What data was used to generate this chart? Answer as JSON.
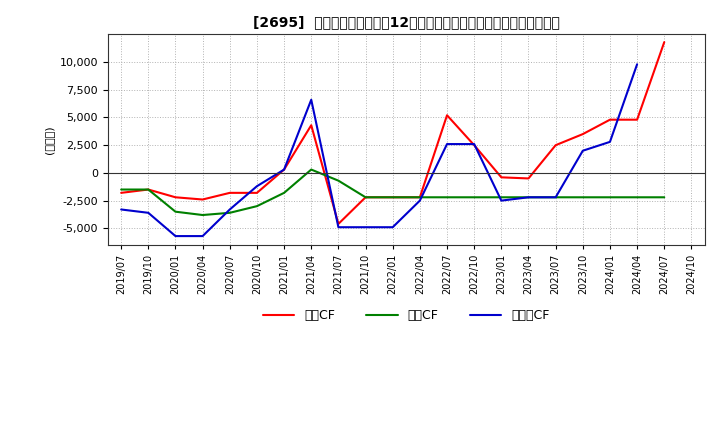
{
  "title": "[2695]  キャッシュフローの12か月移動合計の対前年同期増減額の推移",
  "ylabel": "(百万円)",
  "ylim": [
    -6500,
    12500
  ],
  "yticks": [
    -5000,
    -2500,
    0,
    2500,
    5000,
    7500,
    10000
  ],
  "legend_labels": [
    "営業CF",
    "投資CF",
    "フリーCF"
  ],
  "line_colors": [
    "#ff0000",
    "#008000",
    "#0000cd"
  ],
  "background_color": "#ffffff",
  "grid_color": "#aaaaaa",
  "dates": [
    "2019/07",
    "2019/10",
    "2020/01",
    "2020/04",
    "2020/07",
    "2020/10",
    "2021/01",
    "2021/04",
    "2021/07",
    "2021/10",
    "2022/01",
    "2022/04",
    "2022/07",
    "2022/10",
    "2023/01",
    "2023/04",
    "2023/07",
    "2023/10",
    "2024/01",
    "2024/04",
    "2024/07",
    "2024/10"
  ],
  "operating_cf": [
    -1800,
    -1500,
    -2200,
    -2400,
    -1800,
    -1800,
    300,
    4300,
    -4600,
    -2200,
    -2200,
    -2200,
    5200,
    2500,
    -400,
    -500,
    2500,
    3500,
    4800,
    4800,
    11800,
    null
  ],
  "investing_cf": [
    -1500,
    -1500,
    -3500,
    -3800,
    -3600,
    -3000,
    -1800,
    300,
    -700,
    -2200,
    -2200,
    -2200,
    -2200,
    -2200,
    -2200,
    -2200,
    -2200,
    -2200,
    -2200,
    -2200,
    -2200,
    null
  ],
  "free_cf": [
    -3300,
    -3600,
    -5700,
    -5700,
    -3300,
    -1200,
    300,
    6600,
    -4900,
    -4900,
    -4900,
    -2500,
    2600,
    2600,
    -2500,
    -2200,
    -2200,
    2000,
    2800,
    9800,
    null,
    null
  ]
}
